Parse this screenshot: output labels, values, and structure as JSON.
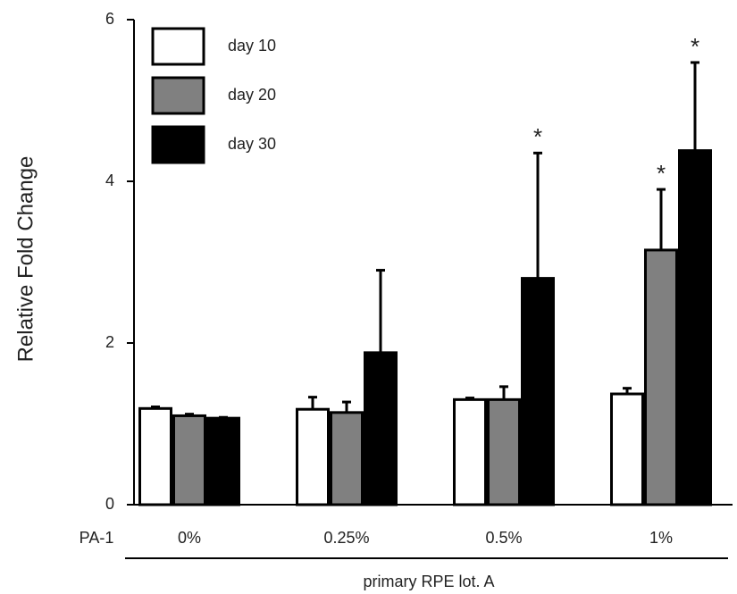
{
  "chart_data": {
    "type": "bar",
    "y_label": "Relative Fold Change",
    "x_prefix": "PA-1",
    "x_group_label": "primary RPE lot. A",
    "categories": [
      "0%",
      "0.25%",
      "0.5%",
      "1%"
    ],
    "series": [
      {
        "name": "day 10",
        "color": "#ffffff",
        "values": [
          1.19,
          1.18,
          1.3,
          1.37
        ],
        "errors": [
          0.02,
          0.15,
          0.02,
          0.07
        ],
        "significance": [
          null,
          null,
          null,
          null
        ]
      },
      {
        "name": "day 20",
        "color": "#808080",
        "values": [
          1.1,
          1.14,
          1.3,
          3.15
        ],
        "errors": [
          0.02,
          0.13,
          0.16,
          0.75
        ],
        "significance": [
          null,
          null,
          null,
          "*"
        ]
      },
      {
        "name": "day 30",
        "color": "#000000",
        "values": [
          1.07,
          1.88,
          2.8,
          4.38
        ],
        "errors": [
          0.01,
          1.02,
          1.55,
          1.09
        ],
        "significance": [
          null,
          null,
          "*",
          "*"
        ]
      }
    ],
    "ylim": [
      0,
      6
    ],
    "yticks": [
      0,
      2,
      4,
      6
    ],
    "legend": "upper left"
  }
}
